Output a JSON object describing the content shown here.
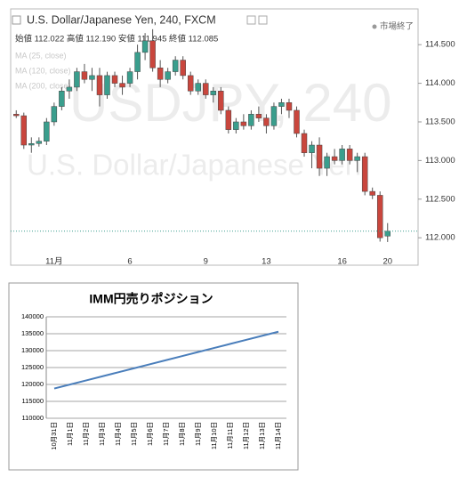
{
  "chart_data": [
    {
      "type": "candlestick",
      "title": "U.S. Dollar/Japanese Yen, 240, FXCM",
      "ohlc_text": "始値 112.022 高値 112.190 安値 111.945 終値 112.085",
      "status": "市場終了",
      "watermark": "USDJPY, 240",
      "watermark_subtitle": "U.S. Dollar/Japanese Yen",
      "indicators": [
        "MA (25, close)",
        "MA (120, close)",
        "MA (200, close)"
      ],
      "up_color": "#3a9e8d",
      "down_color": "#c9463d",
      "price_line_color": "#3a9e8d",
      "price_line": 112.085,
      "ylim": [
        111.76,
        114.94
      ],
      "yticks": [
        {
          "value": 112,
          "label": "112.000"
        },
        {
          "value": 112.5,
          "label": "112.500"
        },
        {
          "value": 113,
          "label": "113.000"
        },
        {
          "value": 113.5,
          "label": "113.500"
        },
        {
          "value": 114,
          "label": "114.000"
        },
        {
          "value": 114.5,
          "label": "114.500"
        }
      ],
      "categories": [
        null,
        null,
        null,
        null,
        null,
        "11月",
        null,
        null,
        null,
        null,
        null,
        null,
        null,
        null,
        null,
        "6",
        null,
        null,
        null,
        null,
        null,
        null,
        null,
        null,
        null,
        "9",
        null,
        null,
        null,
        null,
        null,
        null,
        null,
        "13",
        null,
        null,
        null,
        null,
        null,
        null,
        null,
        null,
        null,
        "16",
        null,
        null,
        null,
        null,
        null,
        "20"
      ],
      "ohlc": [
        [
          113.6,
          113.65,
          113.55,
          113.58
        ],
        [
          113.58,
          113.62,
          113.15,
          113.2
        ],
        [
          113.2,
          113.3,
          113.1,
          113.22
        ],
        [
          113.22,
          113.3,
          113.18,
          113.25
        ],
        [
          113.25,
          113.55,
          113.2,
          113.5
        ],
        [
          113.5,
          113.75,
          113.45,
          113.7
        ],
        [
          113.7,
          113.95,
          113.65,
          113.9
        ],
        [
          113.9,
          114.05,
          113.8,
          113.95
        ],
        [
          113.95,
          114.2,
          113.9,
          114.15
        ],
        [
          114.15,
          114.25,
          114,
          114.05
        ],
        [
          114.05,
          114.2,
          113.9,
          114.1
        ],
        [
          114.1,
          114.2,
          113.7,
          113.85
        ],
        [
          113.85,
          114.15,
          113.8,
          114.1
        ],
        [
          114.1,
          114.15,
          113.95,
          114
        ],
        [
          114,
          114.1,
          113.85,
          113.95
        ],
        [
          114,
          114.2,
          113.95,
          114.15
        ],
        [
          114.15,
          114.5,
          114.05,
          114.4
        ],
        [
          114.4,
          114.65,
          114.3,
          114.55
        ],
        [
          114.55,
          114.7,
          114.15,
          114.2
        ],
        [
          114.2,
          114.3,
          113.95,
          114.05
        ],
        [
          114.05,
          114.2,
          114,
          114.15
        ],
        [
          114.15,
          114.35,
          114.1,
          114.3
        ],
        [
          114.3,
          114.35,
          114.05,
          114.1
        ],
        [
          114.1,
          114.15,
          113.85,
          113.9
        ],
        [
          113.9,
          114.05,
          113.85,
          114
        ],
        [
          114,
          114.05,
          113.8,
          113.85
        ],
        [
          113.85,
          113.95,
          113.75,
          113.9
        ],
        [
          113.9,
          113.95,
          113.6,
          113.65
        ],
        [
          113.65,
          113.7,
          113.35,
          113.4
        ],
        [
          113.4,
          113.55,
          113.35,
          113.5
        ],
        [
          113.5,
          113.6,
          113.4,
          113.45
        ],
        [
          113.45,
          113.65,
          113.4,
          113.6
        ],
        [
          113.6,
          113.7,
          113.5,
          113.55
        ],
        [
          113.55,
          113.6,
          113.35,
          113.45
        ],
        [
          113.45,
          113.75,
          113.4,
          113.7
        ],
        [
          113.7,
          113.8,
          113.6,
          113.75
        ],
        [
          113.75,
          113.8,
          113.55,
          113.65
        ],
        [
          113.65,
          113.7,
          113.3,
          113.35
        ],
        [
          113.35,
          113.4,
          113.05,
          113.1
        ],
        [
          113.1,
          113.25,
          112.9,
          113.2
        ],
        [
          113.2,
          113.3,
          112.8,
          112.9
        ],
        [
          112.9,
          113.1,
          112.8,
          113.05
        ],
        [
          113.05,
          113.15,
          112.95,
          113
        ],
        [
          113,
          113.2,
          112.95,
          113.15
        ],
        [
          113.15,
          113.2,
          112.95,
          113
        ],
        [
          113,
          113.1,
          112.85,
          113.05
        ],
        [
          113.05,
          113.1,
          112.55,
          112.6
        ],
        [
          112.6,
          112.65,
          112.5,
          112.55
        ],
        [
          112.55,
          112.6,
          111.95,
          112
        ],
        [
          112.022,
          112.19,
          111.945,
          112.085
        ]
      ]
    },
    {
      "type": "line",
      "title": "IMM円売りポジション",
      "categories": [
        "10月31日",
        "11月1日",
        "11月2日",
        "11月3日",
        "11月4日",
        "11月5日",
        "11月6日",
        "11月7日",
        "11月8日",
        "11月9日",
        "11月10日",
        "11月11日",
        "11月12日",
        "11月13日",
        "11月14日"
      ],
      "series": [
        {
          "color": "#4a7ebb",
          "values": [
            118800,
            120000,
            121200,
            122400,
            123600,
            124800,
            126000,
            127200,
            128400,
            129600,
            130800,
            132000,
            133200,
            134400,
            135600
          ]
        }
      ],
      "ylim": [
        110000,
        140000
      ],
      "yticks": [
        110000,
        115000,
        120000,
        125000,
        130000,
        135000,
        140000
      ],
      "grid": true
    }
  ]
}
